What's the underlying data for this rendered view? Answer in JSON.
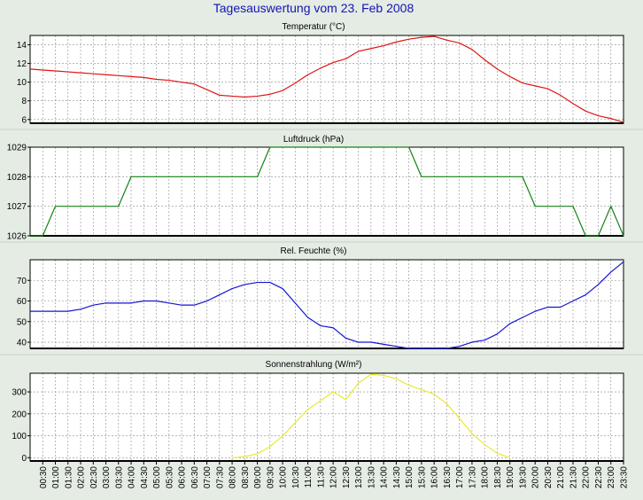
{
  "page_title": "Tagesauswertung vom 23. Feb 2008",
  "colors": {
    "background": "#e4ece4",
    "plot_background": "#ffffff",
    "title": "#1414b4",
    "temperature": "#e01414",
    "pressure": "#148214",
    "humidity": "#1414d2",
    "radiation": "#eaea2a",
    "grid": "#8c8c8c"
  },
  "time_labels": [
    "00:30",
    "01:00",
    "01:30",
    "02:00",
    "02:30",
    "03:00",
    "03:30",
    "04:00",
    "04:30",
    "05:00",
    "05:30",
    "06:00",
    "06:30",
    "07:00",
    "07:30",
    "08:00",
    "08:30",
    "09:00",
    "09:30",
    "10:00",
    "10:30",
    "11:00",
    "11:30",
    "12:00",
    "12:30",
    "13:00",
    "13:30",
    "14:00",
    "14:30",
    "15:00",
    "15:30",
    "16:00",
    "16:30",
    "17:00",
    "17:30",
    "18:00",
    "18:30",
    "19:00",
    "19:30",
    "20:00",
    "20:30",
    "21:00",
    "21:30",
    "22:00",
    "22:30",
    "23:00",
    "23:30"
  ],
  "chart_data": [
    {
      "type": "line",
      "title": "Temperatur (°C)",
      "ylim": [
        5.6,
        15.0
      ],
      "yticks": [
        6,
        8,
        10,
        12,
        14
      ],
      "grid": true,
      "x": [
        "00:00",
        "00:30",
        "01:00",
        "01:30",
        "02:00",
        "02:30",
        "03:00",
        "03:30",
        "04:00",
        "04:30",
        "05:00",
        "05:30",
        "06:00",
        "06:30",
        "07:00",
        "07:30",
        "08:00",
        "08:30",
        "09:00",
        "09:30",
        "10:00",
        "10:30",
        "11:00",
        "11:30",
        "12:00",
        "12:30",
        "13:00",
        "13:30",
        "14:00",
        "14:30",
        "15:00",
        "15:30",
        "16:00",
        "16:30",
        "17:00",
        "17:30",
        "18:00",
        "18:30",
        "19:00",
        "19:30",
        "20:00",
        "20:30",
        "21:00",
        "21:30",
        "22:00",
        "22:30",
        "23:00",
        "23:30"
      ],
      "series": [
        {
          "values": [
            11.4,
            11.3,
            11.2,
            11.1,
            11.0,
            10.9,
            10.8,
            10.7,
            10.6,
            10.5,
            10.3,
            10.2,
            10.0,
            9.8,
            9.2,
            8.6,
            8.5,
            8.4,
            8.5,
            8.7,
            9.1,
            9.9,
            10.8,
            11.5,
            12.1,
            12.5,
            13.3,
            13.6,
            13.9,
            14.3,
            14.6,
            14.8,
            14.9,
            14.5,
            14.2,
            13.5,
            12.4,
            11.4,
            10.6,
            9.9,
            9.6,
            9.3,
            8.6,
            7.7,
            6.9,
            6.4,
            6.1,
            5.7
          ]
        }
      ]
    },
    {
      "type": "line",
      "title": "Luftdruck (hPa)",
      "ylim": [
        1026,
        1029
      ],
      "yticks": [
        1026,
        1027,
        1028,
        1029
      ],
      "grid": true,
      "x": [
        "00:00",
        "00:30",
        "01:00",
        "01:30",
        "02:00",
        "02:30",
        "03:00",
        "03:30",
        "04:00",
        "04:30",
        "05:00",
        "05:30",
        "06:00",
        "06:30",
        "07:00",
        "07:30",
        "08:00",
        "08:30",
        "09:00",
        "09:30",
        "10:00",
        "10:30",
        "11:00",
        "11:30",
        "12:00",
        "12:30",
        "13:00",
        "13:30",
        "14:00",
        "14:30",
        "15:00",
        "15:30",
        "16:00",
        "16:30",
        "17:00",
        "17:30",
        "18:00",
        "18:30",
        "19:00",
        "19:30",
        "20:00",
        "20:30",
        "21:00",
        "21:30",
        "22:00",
        "22:30",
        "23:00",
        "23:30"
      ],
      "series": [
        {
          "values": [
            1026,
            1026,
            1027,
            1027,
            1027,
            1027,
            1027,
            1027,
            1028,
            1028,
            1028,
            1028,
            1028,
            1028,
            1028,
            1028,
            1028,
            1028,
            1028,
            1029,
            1029,
            1029,
            1029,
            1029,
            1029,
            1029,
            1029,
            1029,
            1029,
            1029,
            1029,
            1028,
            1028,
            1028,
            1028,
            1028,
            1028,
            1028,
            1028,
            1028,
            1027,
            1027,
            1027,
            1027,
            1026,
            1026,
            1027,
            1026
          ]
        }
      ]
    },
    {
      "type": "line",
      "title": "Rel. Feuchte (%)",
      "ylim": [
        37,
        80
      ],
      "yticks": [
        40,
        50,
        60,
        70
      ],
      "grid": true,
      "x": [
        "00:00",
        "00:30",
        "01:00",
        "01:30",
        "02:00",
        "02:30",
        "03:00",
        "03:30",
        "04:00",
        "04:30",
        "05:00",
        "05:30",
        "06:00",
        "06:30",
        "07:00",
        "07:30",
        "08:00",
        "08:30",
        "09:00",
        "09:30",
        "10:00",
        "10:30",
        "11:00",
        "11:30",
        "12:00",
        "12:30",
        "13:00",
        "13:30",
        "14:00",
        "14:30",
        "15:00",
        "15:30",
        "16:00",
        "16:30",
        "17:00",
        "17:30",
        "18:00",
        "18:30",
        "19:00",
        "19:30",
        "20:00",
        "20:30",
        "21:00",
        "21:30",
        "22:00",
        "22:30",
        "23:00",
        "23:30"
      ],
      "series": [
        {
          "values": [
            55,
            55,
            55,
            55,
            56,
            58,
            59,
            59,
            59,
            60,
            60,
            59,
            58,
            58,
            60,
            63,
            66,
            68,
            69,
            69,
            66,
            59,
            52,
            48,
            47,
            42,
            40,
            40,
            39,
            38,
            37,
            37,
            37,
            37,
            38,
            40,
            41,
            44,
            49,
            52,
            55,
            57,
            57,
            60,
            63,
            68,
            74,
            79
          ]
        }
      ]
    },
    {
      "type": "line",
      "title": "Sonnenstrahlung (W/m²)",
      "ylim": [
        -15,
        385
      ],
      "yticks": [
        0,
        100,
        200,
        300
      ],
      "grid": true,
      "x": [
        "00:00",
        "00:30",
        "01:00",
        "01:30",
        "02:00",
        "02:30",
        "03:00",
        "03:30",
        "04:00",
        "04:30",
        "05:00",
        "05:30",
        "06:00",
        "06:30",
        "07:00",
        "07:30",
        "08:00",
        "08:30",
        "09:00",
        "09:30",
        "10:00",
        "10:30",
        "11:00",
        "11:30",
        "12:00",
        "12:30",
        "13:00",
        "13:30",
        "14:00",
        "14:30",
        "15:00",
        "15:30",
        "16:00",
        "16:30",
        "17:00",
        "17:30",
        "18:00",
        "18:30",
        "19:00",
        "19:30",
        "20:00",
        "20:30",
        "21:00",
        "21:30",
        "22:00",
        "22:30",
        "23:00",
        "23:30"
      ],
      "series": [
        {
          "values": [
            null,
            null,
            null,
            null,
            null,
            null,
            null,
            null,
            null,
            null,
            null,
            null,
            null,
            null,
            null,
            null,
            0,
            5,
            18,
            50,
            100,
            160,
            220,
            260,
            300,
            265,
            340,
            380,
            375,
            360,
            330,
            310,
            290,
            245,
            180,
            110,
            60,
            20,
            0,
            null,
            null,
            null,
            null,
            null,
            null,
            null,
            null,
            null
          ]
        }
      ]
    }
  ]
}
